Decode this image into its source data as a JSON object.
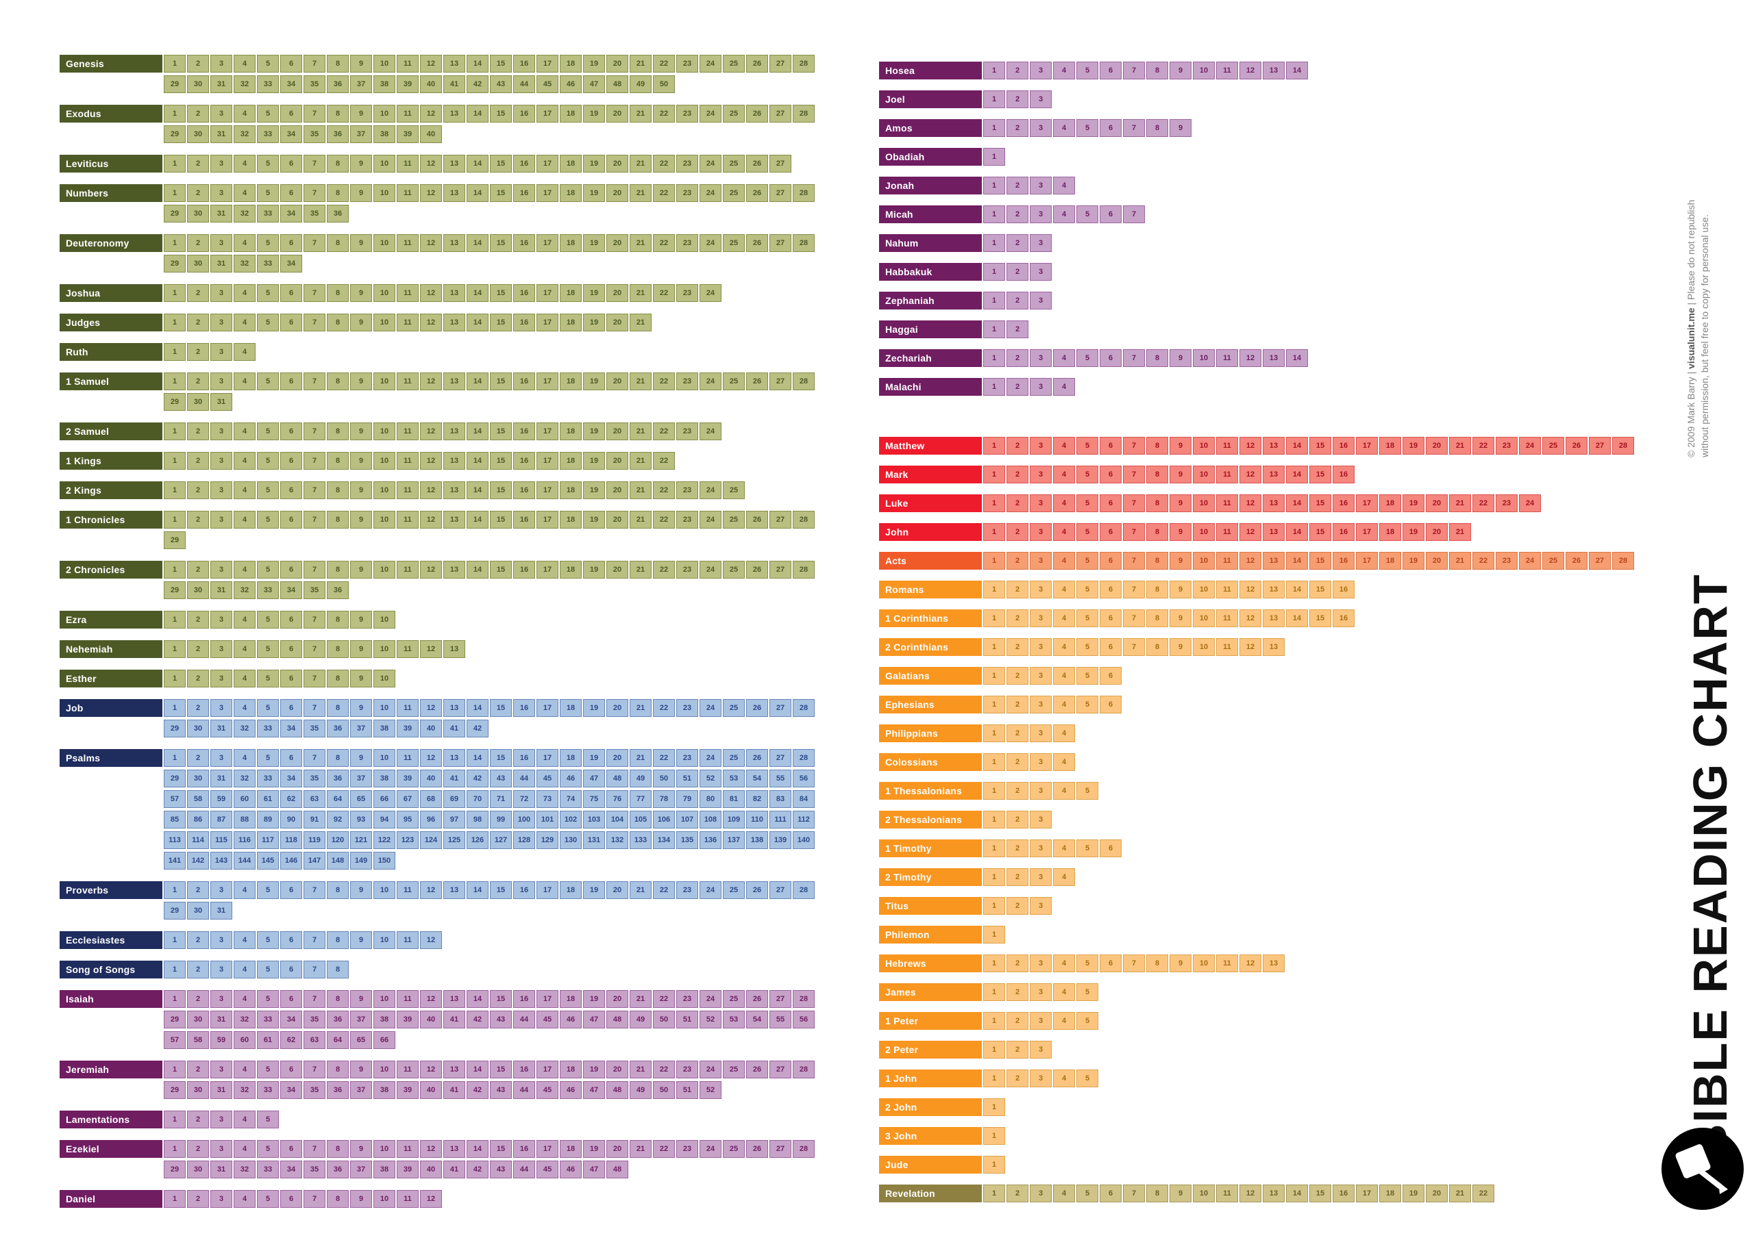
{
  "title": "BIBLE READING CHART",
  "credit": {
    "pre": "© 2009 Mark Barry  |  ",
    "brand": "visualunit.me",
    "post": "  |  Please do not republish",
    "line2": "without permission, but feel free to copy for personal use."
  },
  "groups": {
    "ot_history": {
      "label_bg": "#4e5a26",
      "label_fg": "#ffffff",
      "cell_bg": "#b9bf81",
      "cell_border": "#878f4a",
      "cell_fg": "#4e5a26"
    },
    "wisdom": {
      "label_bg": "#1f2c5e",
      "label_fg": "#ffffff",
      "cell_bg": "#a8c2e2",
      "cell_border": "#6787b8",
      "cell_fg": "#2c4a88"
    },
    "prophets": {
      "label_bg": "#701d62",
      "label_fg": "#ffffff",
      "cell_bg": "#c7a2c8",
      "cell_border": "#9c63a0",
      "cell_fg": "#6d2063"
    },
    "gospels": {
      "label_bg": "#ee1b2c",
      "label_fg": "#ffffff",
      "cell_bg": "#f4867d",
      "cell_border": "#dd5252",
      "cell_fg": "#a81220"
    },
    "acts": {
      "label_bg": "#f05a28",
      "label_fg": "#ffffff",
      "cell_bg": "#f79d72",
      "cell_border": "#dd7544",
      "cell_fg": "#b5451a"
    },
    "epistles": {
      "label_bg": "#f8961f",
      "label_fg": "#ffffff",
      "cell_bg": "#fcc57f",
      "cell_border": "#dda44c",
      "cell_fg": "#a96f15"
    },
    "revelation": {
      "label_bg": "#8e8040",
      "label_fg": "#ffffff",
      "cell_bg": "#d0c388",
      "cell_border": "#a4965a",
      "cell_fg": "#6d6128"
    }
  },
  "chart_data": {
    "type": "table",
    "title": "BIBLE READING CHART",
    "description": "Grid of every Bible book with one numbered box per chapter, wrapped at 28 chapters per row.",
    "max_chapters_per_row": 28,
    "books": [
      {
        "name": "Genesis",
        "chapters": 50,
        "group": "ot_history",
        "column": "left"
      },
      {
        "name": "Exodus",
        "chapters": 40,
        "group": "ot_history",
        "column": "left"
      },
      {
        "name": "Leviticus",
        "chapters": 27,
        "group": "ot_history",
        "column": "left"
      },
      {
        "name": "Numbers",
        "chapters": 36,
        "group": "ot_history",
        "column": "left"
      },
      {
        "name": "Deuteronomy",
        "chapters": 34,
        "group": "ot_history",
        "column": "left"
      },
      {
        "name": "Joshua",
        "chapters": 24,
        "group": "ot_history",
        "column": "left"
      },
      {
        "name": "Judges",
        "chapters": 21,
        "group": "ot_history",
        "column": "left"
      },
      {
        "name": "Ruth",
        "chapters": 4,
        "group": "ot_history",
        "column": "left"
      },
      {
        "name": "1 Samuel",
        "chapters": 31,
        "group": "ot_history",
        "column": "left"
      },
      {
        "name": "2 Samuel",
        "chapters": 24,
        "group": "ot_history",
        "column": "left"
      },
      {
        "name": "1 Kings",
        "chapters": 22,
        "group": "ot_history",
        "column": "left"
      },
      {
        "name": "2 Kings",
        "chapters": 25,
        "group": "ot_history",
        "column": "left"
      },
      {
        "name": "1 Chronicles",
        "chapters": 29,
        "group": "ot_history",
        "column": "left"
      },
      {
        "name": "2 Chronicles",
        "chapters": 36,
        "group": "ot_history",
        "column": "left"
      },
      {
        "name": "Ezra",
        "chapters": 10,
        "group": "ot_history",
        "column": "left"
      },
      {
        "name": "Nehemiah",
        "chapters": 13,
        "group": "ot_history",
        "column": "left"
      },
      {
        "name": "Esther",
        "chapters": 10,
        "group": "ot_history",
        "column": "left"
      },
      {
        "name": "Job",
        "chapters": 42,
        "group": "wisdom",
        "column": "left"
      },
      {
        "name": "Psalms",
        "chapters": 150,
        "group": "wisdom",
        "column": "left"
      },
      {
        "name": "Proverbs",
        "chapters": 31,
        "group": "wisdom",
        "column": "left"
      },
      {
        "name": "Ecclesiastes",
        "chapters": 12,
        "group": "wisdom",
        "column": "left"
      },
      {
        "name": "Song of Songs",
        "chapters": 8,
        "group": "wisdom",
        "column": "left"
      },
      {
        "name": "Isaiah",
        "chapters": 66,
        "group": "prophets",
        "column": "left"
      },
      {
        "name": "Jeremiah",
        "chapters": 52,
        "group": "prophets",
        "column": "left"
      },
      {
        "name": "Lamentations",
        "chapters": 5,
        "group": "prophets",
        "column": "left"
      },
      {
        "name": "Ezekiel",
        "chapters": 48,
        "group": "prophets",
        "column": "left"
      },
      {
        "name": "Daniel",
        "chapters": 12,
        "group": "prophets",
        "column": "left"
      },
      {
        "name": "Hosea",
        "chapters": 14,
        "group": "prophets",
        "column": "right"
      },
      {
        "name": "Joel",
        "chapters": 3,
        "group": "prophets",
        "column": "right"
      },
      {
        "name": "Amos",
        "chapters": 9,
        "group": "prophets",
        "column": "right"
      },
      {
        "name": "Obadiah",
        "chapters": 1,
        "group": "prophets",
        "column": "right"
      },
      {
        "name": "Jonah",
        "chapters": 4,
        "group": "prophets",
        "column": "right"
      },
      {
        "name": "Micah",
        "chapters": 7,
        "group": "prophets",
        "column": "right"
      },
      {
        "name": "Nahum",
        "chapters": 3,
        "group": "prophets",
        "column": "right"
      },
      {
        "name": "Habbakuk",
        "chapters": 3,
        "group": "prophets",
        "column": "right"
      },
      {
        "name": "Zephaniah",
        "chapters": 3,
        "group": "prophets",
        "column": "right"
      },
      {
        "name": "Haggai",
        "chapters": 2,
        "group": "prophets",
        "column": "right"
      },
      {
        "name": "Zechariah",
        "chapters": 14,
        "group": "prophets",
        "column": "right"
      },
      {
        "name": "Malachi",
        "chapters": 4,
        "group": "prophets",
        "column": "right"
      },
      {
        "name": "Matthew",
        "chapters": 28,
        "group": "gospels",
        "column": "right",
        "section_break": true
      },
      {
        "name": "Mark",
        "chapters": 16,
        "group": "gospels",
        "column": "right"
      },
      {
        "name": "Luke",
        "chapters": 24,
        "group": "gospels",
        "column": "right"
      },
      {
        "name": "John",
        "chapters": 21,
        "group": "gospels",
        "column": "right"
      },
      {
        "name": "Acts",
        "chapters": 28,
        "group": "acts",
        "column": "right"
      },
      {
        "name": "Romans",
        "chapters": 16,
        "group": "epistles",
        "column": "right"
      },
      {
        "name": "1 Corinthians",
        "chapters": 16,
        "group": "epistles",
        "column": "right"
      },
      {
        "name": "2 Corinthians",
        "chapters": 13,
        "group": "epistles",
        "column": "right"
      },
      {
        "name": "Galatians",
        "chapters": 6,
        "group": "epistles",
        "column": "right"
      },
      {
        "name": "Ephesians",
        "chapters": 6,
        "group": "epistles",
        "column": "right"
      },
      {
        "name": "Philippians",
        "chapters": 4,
        "group": "epistles",
        "column": "right"
      },
      {
        "name": "Colossians",
        "chapters": 4,
        "group": "epistles",
        "column": "right"
      },
      {
        "name": "1 Thessalonians",
        "chapters": 5,
        "group": "epistles",
        "column": "right"
      },
      {
        "name": "2 Thessalonians",
        "chapters": 3,
        "group": "epistles",
        "column": "right"
      },
      {
        "name": "1 Timothy",
        "chapters": 6,
        "group": "epistles",
        "column": "right"
      },
      {
        "name": "2 Timothy",
        "chapters": 4,
        "group": "epistles",
        "column": "right"
      },
      {
        "name": "Titus",
        "chapters": 3,
        "group": "epistles",
        "column": "right"
      },
      {
        "name": "Philemon",
        "chapters": 1,
        "group": "epistles",
        "column": "right"
      },
      {
        "name": "Hebrews",
        "chapters": 13,
        "group": "epistles",
        "column": "right"
      },
      {
        "name": "James",
        "chapters": 5,
        "group": "epistles",
        "column": "right"
      },
      {
        "name": "1 Peter",
        "chapters": 5,
        "group": "epistles",
        "column": "right"
      },
      {
        "name": "2 Peter",
        "chapters": 3,
        "group": "epistles",
        "column": "right"
      },
      {
        "name": "1 John",
        "chapters": 5,
        "group": "epistles",
        "column": "right"
      },
      {
        "name": "2 John",
        "chapters": 1,
        "group": "epistles",
        "column": "right"
      },
      {
        "name": "3 John",
        "chapters": 1,
        "group": "epistles",
        "column": "right"
      },
      {
        "name": "Jude",
        "chapters": 1,
        "group": "epistles",
        "column": "right"
      },
      {
        "name": "Revelation",
        "chapters": 22,
        "group": "revelation",
        "column": "right"
      }
    ]
  }
}
